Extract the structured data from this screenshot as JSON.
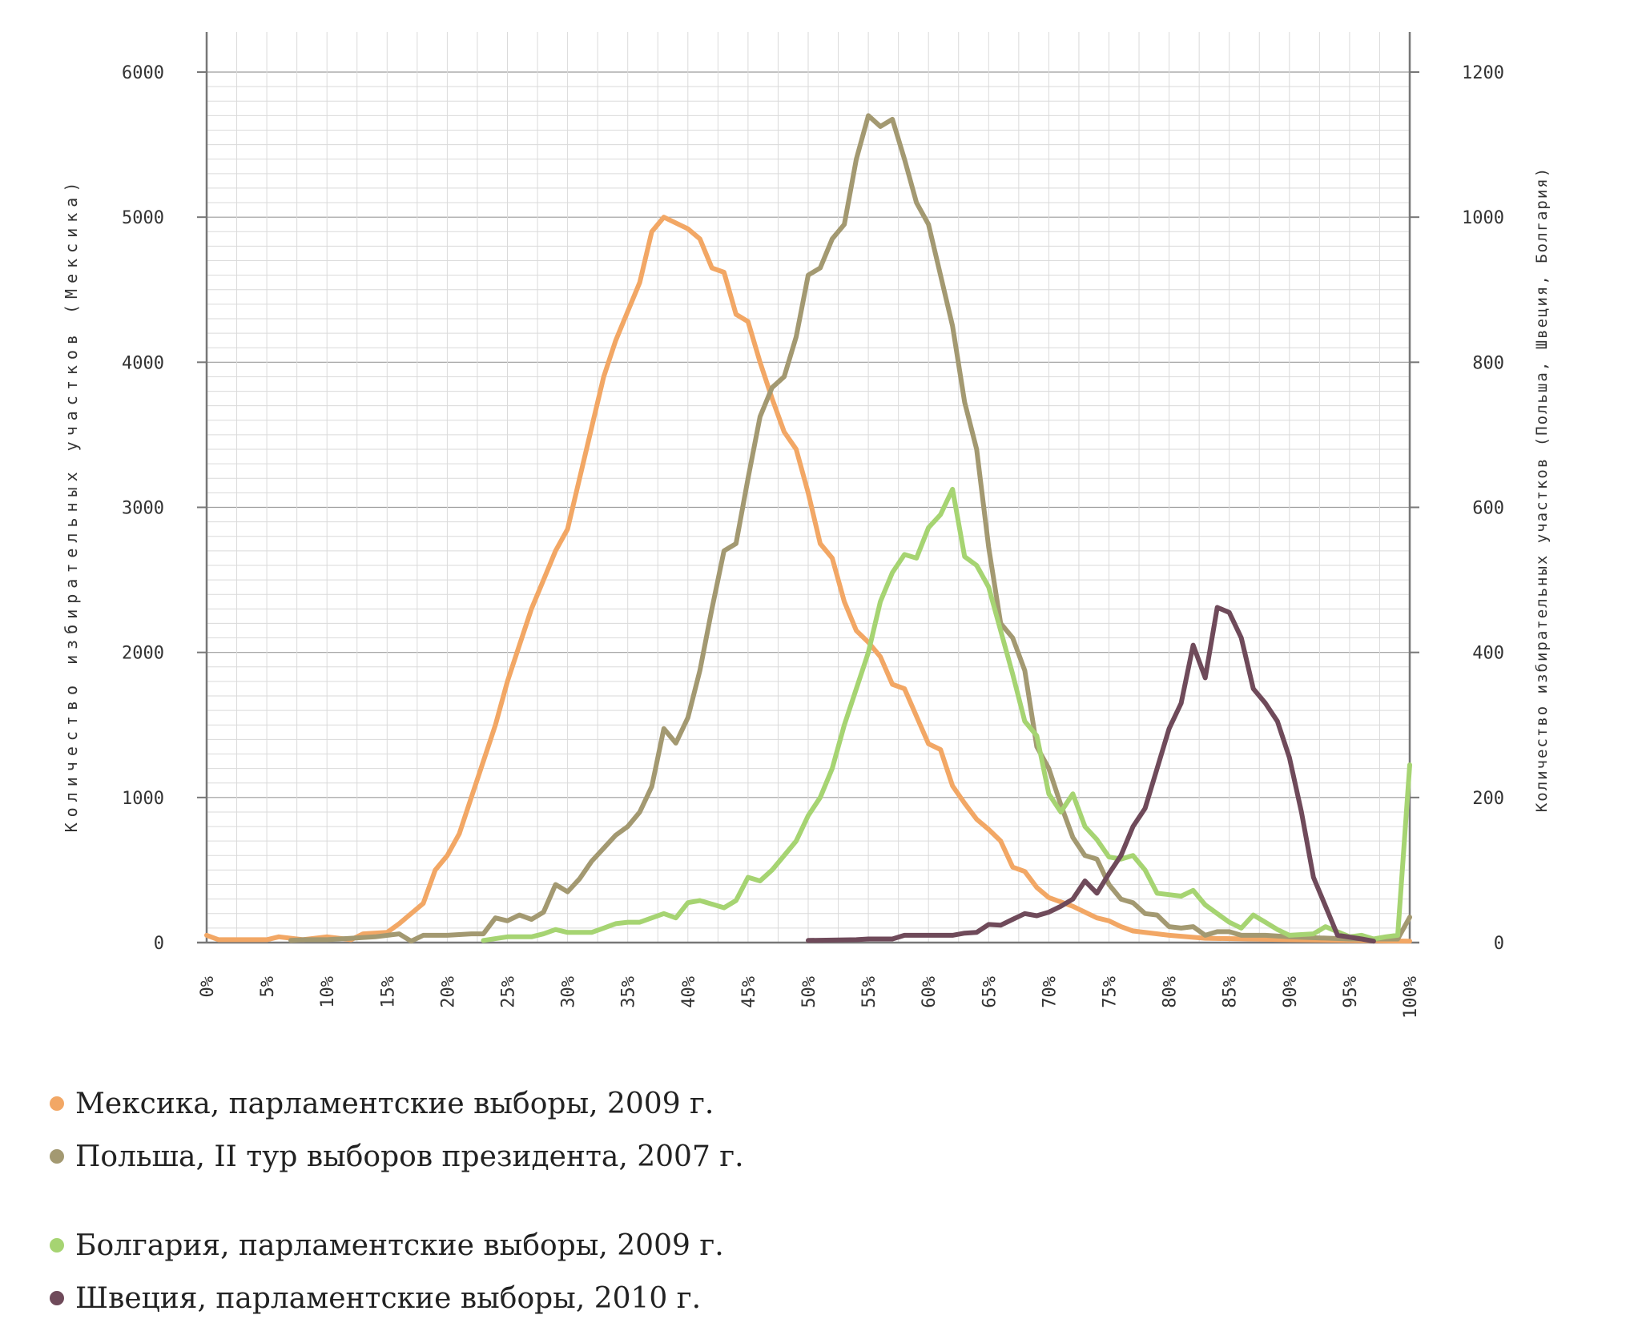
{
  "chart_data": {
    "type": "line",
    "x_unit": "%",
    "x_ticks": [
      "0%",
      "5%",
      "10%",
      "15%",
      "20%",
      "25%",
      "30%",
      "35%",
      "40%",
      "45%",
      "50%",
      "55%",
      "60%",
      "65%",
      "70%",
      "75%",
      "80%",
      "85%",
      "90%",
      "95%",
      "100%"
    ],
    "y_left": {
      "label": "Количество избирательных участков (Мексика)",
      "ticks": [
        "0",
        "1000",
        "2000",
        "3000",
        "4000",
        "5000",
        "6000"
      ],
      "lim": [
        0,
        6000
      ]
    },
    "y_right": {
      "label": "Количество избирательных участков (Польша, Швеция, Болгария)",
      "ticks": [
        "0",
        "200",
        "400",
        "600",
        "800",
        "1000",
        "1200"
      ],
      "lim": [
        0,
        1200
      ]
    },
    "xlim": [
      0,
      100
    ],
    "grid": true,
    "legend_position": "bottom-left",
    "series": [
      {
        "name": "Мексика, парламентские выборы, 2009 г.",
        "axis": "left",
        "color": "#F2A765",
        "points": [
          [
            0,
            50
          ],
          [
            1,
            20
          ],
          [
            5,
            20
          ],
          [
            6,
            40
          ],
          [
            8,
            20
          ],
          [
            10,
            40
          ],
          [
            12,
            20
          ],
          [
            13,
            60
          ],
          [
            15,
            70
          ],
          [
            16,
            130
          ],
          [
            18,
            270
          ],
          [
            19,
            500
          ],
          [
            20,
            600
          ],
          [
            21,
            750
          ],
          [
            22,
            1000
          ],
          [
            23,
            1250
          ],
          [
            24,
            1500
          ],
          [
            25,
            1800
          ],
          [
            26,
            2050
          ],
          [
            27,
            2300
          ],
          [
            28,
            2500
          ],
          [
            29,
            2700
          ],
          [
            30,
            2850
          ],
          [
            31,
            3200
          ],
          [
            32,
            3550
          ],
          [
            33,
            3900
          ],
          [
            34,
            4150
          ],
          [
            35,
            4350
          ],
          [
            36,
            4550
          ],
          [
            37,
            4900
          ],
          [
            38,
            5000
          ],
          [
            40,
            4920
          ],
          [
            41,
            4850
          ],
          [
            42,
            4650
          ],
          [
            43,
            4620
          ],
          [
            44,
            4330
          ],
          [
            45,
            4280
          ],
          [
            46,
            4000
          ],
          [
            47,
            3750
          ],
          [
            48,
            3520
          ],
          [
            49,
            3400
          ],
          [
            50,
            3100
          ],
          [
            51,
            2750
          ],
          [
            52,
            2650
          ],
          [
            53,
            2350
          ],
          [
            54,
            2150
          ],
          [
            55,
            2070
          ],
          [
            56,
            1970
          ],
          [
            57,
            1780
          ],
          [
            58,
            1750
          ],
          [
            59,
            1560
          ],
          [
            60,
            1370
          ],
          [
            61,
            1330
          ],
          [
            62,
            1080
          ],
          [
            63,
            960
          ],
          [
            64,
            850
          ],
          [
            65,
            780
          ],
          [
            66,
            700
          ],
          [
            67,
            520
          ],
          [
            68,
            490
          ],
          [
            69,
            380
          ],
          [
            70,
            310
          ],
          [
            72,
            250
          ],
          [
            74,
            170
          ],
          [
            75,
            150
          ],
          [
            76,
            110
          ],
          [
            77,
            80
          ],
          [
            80,
            50
          ],
          [
            83,
            30
          ],
          [
            90,
            20
          ],
          [
            100,
            10
          ]
        ]
      },
      {
        "name": "Польша, II тур выборов президента, 2007 г.",
        "axis": "right",
        "color": "#A39971",
        "points": [
          [
            7,
            3
          ],
          [
            8,
            4
          ],
          [
            10,
            4
          ],
          [
            12,
            6
          ],
          [
            14,
            8
          ],
          [
            16,
            12
          ],
          [
            17,
            2
          ],
          [
            18,
            10
          ],
          [
            20,
            10
          ],
          [
            22,
            12
          ],
          [
            23,
            12
          ],
          [
            24,
            34
          ],
          [
            25,
            30
          ],
          [
            26,
            38
          ],
          [
            27,
            32
          ],
          [
            28,
            42
          ],
          [
            29,
            80
          ],
          [
            30,
            70
          ],
          [
            31,
            88
          ],
          [
            32,
            112
          ],
          [
            33,
            130
          ],
          [
            34,
            148
          ],
          [
            35,
            160
          ],
          [
            36,
            180
          ],
          [
            37,
            215
          ],
          [
            38,
            295
          ],
          [
            39,
            275
          ],
          [
            40,
            310
          ],
          [
            41,
            375
          ],
          [
            42,
            460
          ],
          [
            43,
            540
          ],
          [
            44,
            550
          ],
          [
            45,
            640
          ],
          [
            46,
            725
          ],
          [
            47,
            765
          ],
          [
            48,
            780
          ],
          [
            49,
            835
          ],
          [
            50,
            920
          ],
          [
            51,
            930
          ],
          [
            52,
            970
          ],
          [
            53,
            990
          ],
          [
            54,
            1080
          ],
          [
            55,
            1140
          ],
          [
            56,
            1125
          ],
          [
            57,
            1135
          ],
          [
            58,
            1080
          ],
          [
            59,
            1020
          ],
          [
            60,
            990
          ],
          [
            61,
            920
          ],
          [
            62,
            850
          ],
          [
            63,
            745
          ],
          [
            64,
            680
          ],
          [
            65,
            545
          ],
          [
            66,
            440
          ],
          [
            67,
            420
          ],
          [
            68,
            375
          ],
          [
            69,
            270
          ],
          [
            70,
            240
          ],
          [
            71,
            190
          ],
          [
            72,
            145
          ],
          [
            73,
            120
          ],
          [
            74,
            115
          ],
          [
            75,
            80
          ],
          [
            76,
            60
          ],
          [
            77,
            55
          ],
          [
            78,
            40
          ],
          [
            79,
            38
          ],
          [
            80,
            22
          ],
          [
            81,
            20
          ],
          [
            82,
            22
          ],
          [
            83,
            10
          ],
          [
            84,
            15
          ],
          [
            85,
            15
          ],
          [
            86,
            10
          ],
          [
            88,
            10
          ],
          [
            90,
            8
          ],
          [
            95,
            5
          ],
          [
            99,
            5
          ],
          [
            100,
            35
          ]
        ]
      },
      {
        "name": "Болгария, парламентские выборы, 2009 г.",
        "axis": "right",
        "color": "#A6D472",
        "points": [
          [
            23,
            3
          ],
          [
            25,
            8
          ],
          [
            27,
            8
          ],
          [
            28,
            12
          ],
          [
            29,
            18
          ],
          [
            30,
            14
          ],
          [
            32,
            14
          ],
          [
            33,
            20
          ],
          [
            34,
            26
          ],
          [
            35,
            28
          ],
          [
            36,
            28
          ],
          [
            37,
            34
          ],
          [
            38,
            40
          ],
          [
            39,
            34
          ],
          [
            40,
            55
          ],
          [
            41,
            58
          ],
          [
            43,
            48
          ],
          [
            44,
            58
          ],
          [
            45,
            90
          ],
          [
            46,
            85
          ],
          [
            47,
            100
          ],
          [
            48,
            120
          ],
          [
            49,
            140
          ],
          [
            50,
            175
          ],
          [
            51,
            200
          ],
          [
            52,
            240
          ],
          [
            53,
            300
          ],
          [
            54,
            350
          ],
          [
            55,
            400
          ],
          [
            56,
            470
          ],
          [
            57,
            510
          ],
          [
            58,
            535
          ],
          [
            59,
            530
          ],
          [
            60,
            572
          ],
          [
            61,
            590
          ],
          [
            62,
            625
          ],
          [
            63,
            532
          ],
          [
            64,
            520
          ],
          [
            65,
            490
          ],
          [
            66,
            430
          ],
          [
            67,
            370
          ],
          [
            68,
            305
          ],
          [
            69,
            285
          ],
          [
            70,
            205
          ],
          [
            71,
            180
          ],
          [
            72,
            205
          ],
          [
            73,
            160
          ],
          [
            74,
            142
          ],
          [
            75,
            118
          ],
          [
            76,
            115
          ],
          [
            77,
            120
          ],
          [
            78,
            100
          ],
          [
            79,
            68
          ],
          [
            80,
            66
          ],
          [
            81,
            64
          ],
          [
            82,
            72
          ],
          [
            83,
            52
          ],
          [
            84,
            40
          ],
          [
            85,
            28
          ],
          [
            86,
            20
          ],
          [
            87,
            38
          ],
          [
            88,
            28
          ],
          [
            89,
            18
          ],
          [
            90,
            10
          ],
          [
            92,
            12
          ],
          [
            93,
            22
          ],
          [
            95,
            8
          ],
          [
            96,
            10
          ],
          [
            97,
            5
          ],
          [
            98,
            8
          ],
          [
            99,
            10
          ],
          [
            100,
            245
          ]
        ]
      },
      {
        "name": "Швеция, парламентские выборы, 2010 г.",
        "axis": "right",
        "color": "#6F4A5A",
        "points": [
          [
            50,
            3
          ],
          [
            54,
            4
          ],
          [
            55,
            5
          ],
          [
            57,
            5
          ],
          [
            58,
            10
          ],
          [
            62,
            10
          ],
          [
            63,
            13
          ],
          [
            64,
            14
          ],
          [
            65,
            25
          ],
          [
            66,
            24
          ],
          [
            67,
            32
          ],
          [
            68,
            40
          ],
          [
            69,
            37
          ],
          [
            70,
            42
          ],
          [
            71,
            50
          ],
          [
            72,
            60
          ],
          [
            73,
            85
          ],
          [
            74,
            68
          ],
          [
            75,
            95
          ],
          [
            76,
            120
          ],
          [
            77,
            160
          ],
          [
            78,
            185
          ],
          [
            79,
            240
          ],
          [
            80,
            295
          ],
          [
            81,
            330
          ],
          [
            82,
            410
          ],
          [
            83,
            365
          ],
          [
            84,
            462
          ],
          [
            85,
            455
          ],
          [
            86,
            420
          ],
          [
            87,
            350
          ],
          [
            88,
            330
          ],
          [
            89,
            305
          ],
          [
            90,
            255
          ],
          [
            91,
            180
          ],
          [
            92,
            90
          ],
          [
            93,
            50
          ],
          [
            94,
            10
          ],
          [
            96,
            5
          ],
          [
            97,
            2
          ]
        ]
      }
    ]
  }
}
